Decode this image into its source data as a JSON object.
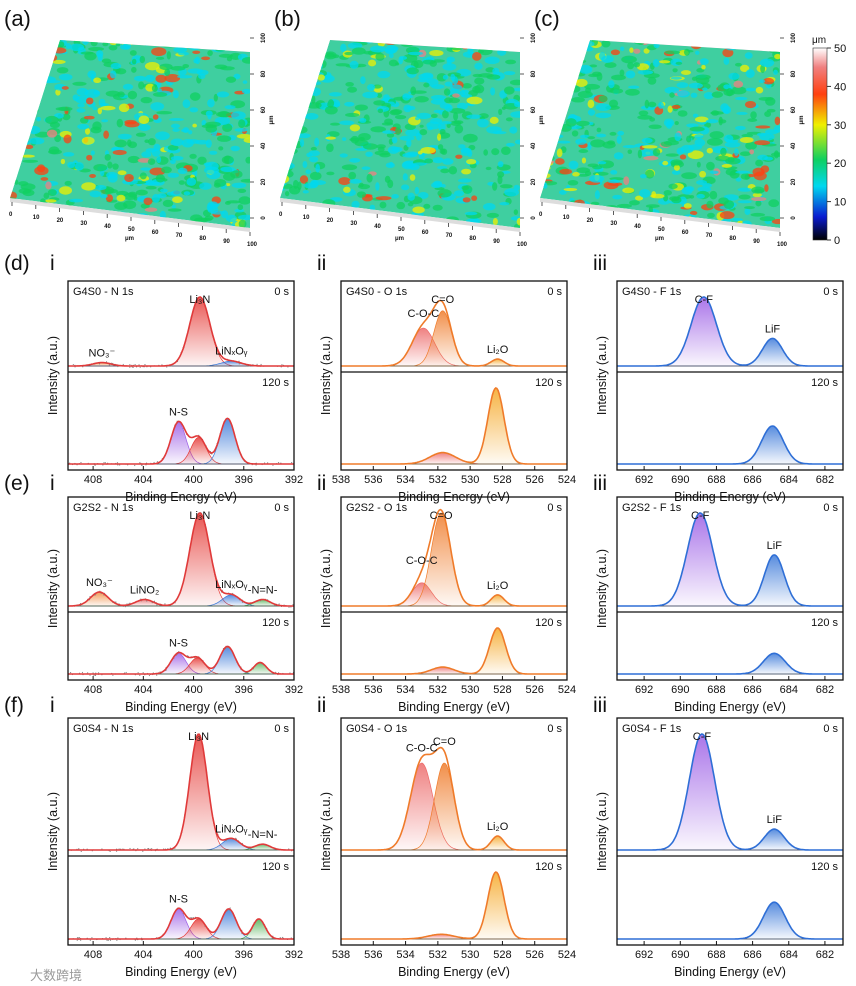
{
  "surface_panels": [
    {
      "label": "(a)",
      "palette_bias": 0.35
    },
    {
      "label": "(b)",
      "palette_bias": 0.15
    },
    {
      "label": "(c)",
      "palette_bias": 0.55
    }
  ],
  "surface_axes": {
    "x_ticks": [
      "0",
      "10",
      "20",
      "30",
      "40",
      "50",
      "60",
      "70",
      "80",
      "90",
      "100"
    ],
    "y_ticks": [
      "0",
      "20",
      "40",
      "60",
      "80",
      "100"
    ],
    "unit": "μm"
  },
  "colorbar": {
    "unit": "μm",
    "ticks": [
      "0",
      "10",
      "20",
      "30",
      "40",
      "50"
    ],
    "range": [
      0,
      50
    ]
  },
  "watermark": "大数跨境",
  "chart_data": [
    {
      "type": "line",
      "row": "(d)",
      "panel": "i",
      "title": "G4S0 - N 1s",
      "xlabel": "Binding Energy (eV)",
      "ylabel": "Intensity (a.u.)",
      "xlim": [
        410,
        392
      ],
      "xticks": [
        "408",
        "404",
        "400",
        "396",
        "392"
      ],
      "tickvals": [
        408,
        404,
        400,
        396,
        392
      ],
      "envelope": "#e03a3a",
      "noise": true,
      "top": {
        "time": "0 s",
        "peaks": [
          {
            "c": 407.3,
            "h": 0.05,
            "s": 0.7,
            "color": "#f08a3c",
            "label": "NO₃⁻"
          },
          {
            "c": 399.5,
            "h": 1,
            "s": 0.8,
            "color": "#e53935",
            "label": "Li₃N"
          },
          {
            "c": 397,
            "h": 0.07,
            "s": 0.8,
            "color": "#3a78d8",
            "label": "LiNₓOᵧ"
          }
        ]
      },
      "bottom": {
        "time": "120 s",
        "peaks": [
          {
            "c": 401.2,
            "h": 0.55,
            "s": 0.6,
            "color": "#9b5de5",
            "label": "N-S"
          },
          {
            "c": 399.6,
            "h": 0.35,
            "s": 0.6,
            "color": "#e53935"
          },
          {
            "c": 397.3,
            "h": 0.6,
            "s": 0.6,
            "color": "#3a78d8"
          }
        ]
      }
    },
    {
      "type": "line",
      "row": "(d)",
      "panel": "ii",
      "title": "G4S0 - O 1s",
      "xlabel": "Binding Energy (eV)",
      "ylabel": "Intensity (a.u.)",
      "xlim": [
        538,
        524
      ],
      "xticks": [
        "538",
        "536",
        "534",
        "532",
        "530",
        "528",
        "526",
        "524"
      ],
      "tickvals": [
        538,
        536,
        534,
        532,
        530,
        528,
        526,
        524
      ],
      "envelope": "#ef7b2a",
      "noise": false,
      "top": {
        "time": "0 s",
        "peaks": [
          {
            "c": 532.9,
            "h": 0.55,
            "s": 0.7,
            "color": "#ec6a6a",
            "label": "C-O-C"
          },
          {
            "c": 531.7,
            "h": 0.8,
            "s": 0.55,
            "color": "#ef7b2a",
            "label": "C=O"
          },
          {
            "c": 528.3,
            "h": 0.1,
            "s": 0.4,
            "color": "#f5a623",
            "label": "Li₂O"
          }
        ]
      },
      "bottom": {
        "time": "120 s",
        "peaks": [
          {
            "c": 531.7,
            "h": 0.15,
            "s": 0.8,
            "color": "#ec6a6a"
          },
          {
            "c": 528.4,
            "h": 1,
            "s": 0.5,
            "color": "#f5a623"
          }
        ]
      }
    },
    {
      "type": "line",
      "row": "(d)",
      "panel": "iii",
      "title": "G4S0 - F 1s",
      "xlabel": "Binding Energy (eV)",
      "ylabel": "Intensity (a.u.)",
      "xlim": [
        693.5,
        681
      ],
      "xticks": [
        "692",
        "690",
        "688",
        "686",
        "684",
        "682"
      ],
      "tickvals": [
        692,
        690,
        688,
        686,
        684,
        682
      ],
      "envelope": "#2f6fd6",
      "noise": false,
      "top": {
        "time": "0 s",
        "peaks": [
          {
            "c": 688.7,
            "h": 1,
            "s": 0.7,
            "color": "#9b5de5",
            "label": "C-F"
          },
          {
            "c": 684.9,
            "h": 0.4,
            "s": 0.55,
            "color": "#3a78d8",
            "label": "LiF"
          }
        ]
      },
      "bottom": {
        "time": "120 s",
        "peaks": [
          {
            "c": 684.9,
            "h": 0.5,
            "s": 0.6,
            "color": "#3a78d8"
          }
        ]
      }
    },
    {
      "type": "line",
      "row": "(e)",
      "panel": "i",
      "title": "G2S2 - N 1s",
      "xlabel": "Binding Energy (eV)",
      "ylabel": "Intensity (a.u.)",
      "xlim": [
        410,
        392
      ],
      "xticks": [
        "408",
        "404",
        "400",
        "396",
        "392"
      ],
      "tickvals": [
        408,
        404,
        400,
        396,
        392
      ],
      "envelope": "#e03a3a",
      "noise": true,
      "top": {
        "time": "0 s",
        "peaks": [
          {
            "c": 407.5,
            "h": 0.15,
            "s": 0.7,
            "color": "#f08a3c",
            "label": "NO₃⁻"
          },
          {
            "c": 403.9,
            "h": 0.07,
            "s": 0.7,
            "color": "#e57373",
            "label": "LiNO₂"
          },
          {
            "c": 399.5,
            "h": 1,
            "s": 0.8,
            "color": "#e53935",
            "label": "Li₃N"
          },
          {
            "c": 397,
            "h": 0.12,
            "s": 0.7,
            "color": "#3a78d8",
            "label": "LiNₓOᵧ"
          },
          {
            "c": 394.5,
            "h": 0.07,
            "s": 0.6,
            "color": "#4caf50",
            "label": "-N=N-"
          }
        ]
      },
      "bottom": {
        "time": "120 s",
        "peaks": [
          {
            "c": 401.2,
            "h": 0.45,
            "s": 0.6,
            "color": "#9b5de5",
            "label": "N-S"
          },
          {
            "c": 399.7,
            "h": 0.35,
            "s": 0.6,
            "color": "#e53935"
          },
          {
            "c": 397.3,
            "h": 0.6,
            "s": 0.6,
            "color": "#3a78d8"
          },
          {
            "c": 394.7,
            "h": 0.25,
            "s": 0.5,
            "color": "#4caf50"
          }
        ]
      }
    },
    {
      "type": "line",
      "row": "(e)",
      "panel": "ii",
      "title": "G2S2 - O 1s",
      "xlabel": "Binding Energy (eV)",
      "ylabel": "Intensity (a.u.)",
      "xlim": [
        538,
        524
      ],
      "xticks": [
        "538",
        "536",
        "534",
        "532",
        "530",
        "528",
        "526",
        "524"
      ],
      "tickvals": [
        538,
        536,
        534,
        532,
        530,
        528,
        526,
        524
      ],
      "envelope": "#ef7b2a",
      "noise": false,
      "top": {
        "time": "0 s",
        "peaks": [
          {
            "c": 533,
            "h": 0.25,
            "s": 0.6,
            "color": "#ec6a6a",
            "label": "C-O-C"
          },
          {
            "c": 531.8,
            "h": 1,
            "s": 0.6,
            "color": "#ef7b2a",
            "label": "C=O"
          },
          {
            "c": 528.3,
            "h": 0.12,
            "s": 0.4,
            "color": "#f5a623",
            "label": "Li₂O"
          }
        ]
      },
      "bottom": {
        "time": "120 s",
        "peaks": [
          {
            "c": 531.7,
            "h": 0.15,
            "s": 0.7,
            "color": "#ec6a6a"
          },
          {
            "c": 528.3,
            "h": 1,
            "s": 0.5,
            "color": "#f5a623"
          }
        ]
      }
    },
    {
      "type": "line",
      "row": "(e)",
      "panel": "iii",
      "title": "G2S2 - F 1s",
      "xlabel": "Binding Energy (eV)",
      "ylabel": "Intensity (a.u.)",
      "xlim": [
        693.5,
        681
      ],
      "xticks": [
        "692",
        "690",
        "688",
        "686",
        "684",
        "682"
      ],
      "tickvals": [
        692,
        690,
        688,
        686,
        684,
        682
      ],
      "envelope": "#2f6fd6",
      "noise": false,
      "top": {
        "time": "0 s",
        "peaks": [
          {
            "c": 688.9,
            "h": 1,
            "s": 0.7,
            "color": "#9b5de5",
            "label": "C-F"
          },
          {
            "c": 684.8,
            "h": 0.55,
            "s": 0.55,
            "color": "#3a78d8",
            "label": "LiF"
          }
        ]
      },
      "bottom": {
        "time": "120 s",
        "peaks": [
          {
            "c": 684.8,
            "h": 0.45,
            "s": 0.6,
            "color": "#3a78d8"
          }
        ]
      }
    },
    {
      "type": "line",
      "row": "(f)",
      "panel": "i",
      "title": "G0S4 - N 1s",
      "xlabel": "Binding Energy (eV)",
      "ylabel": "Intensity (a.u.)",
      "xlim": [
        410,
        392
      ],
      "xticks": [
        "408",
        "404",
        "400",
        "396",
        "392"
      ],
      "tickvals": [
        408,
        404,
        400,
        396,
        392
      ],
      "envelope": "#e03a3a",
      "noise": true,
      "top": {
        "time": "0 s",
        "peaks": [
          {
            "c": 399.6,
            "h": 1,
            "s": 0.7,
            "color": "#e53935",
            "label": "Li₃N"
          },
          {
            "c": 397,
            "h": 0.1,
            "s": 0.7,
            "color": "#3a78d8",
            "label": "LiNₓOᵧ"
          },
          {
            "c": 394.5,
            "h": 0.05,
            "s": 0.6,
            "color": "#4caf50",
            "label": "-N=N-"
          }
        ]
      },
      "bottom": {
        "time": "120 s",
        "peaks": [
          {
            "c": 401.2,
            "h": 0.45,
            "s": 0.6,
            "color": "#9b5de5",
            "label": "N-S"
          },
          {
            "c": 399.6,
            "h": 0.3,
            "s": 0.6,
            "color": "#e53935"
          },
          {
            "c": 397.2,
            "h": 0.45,
            "s": 0.6,
            "color": "#3a78d8"
          },
          {
            "c": 394.8,
            "h": 0.3,
            "s": 0.5,
            "color": "#4caf50"
          }
        ]
      }
    },
    {
      "type": "line",
      "row": "(f)",
      "panel": "ii",
      "title": "G0S4 - O 1s",
      "xlabel": "Binding Energy (eV)",
      "ylabel": "Intensity (a.u.)",
      "xlim": [
        538,
        524
      ],
      "xticks": [
        "538",
        "536",
        "534",
        "532",
        "530",
        "528",
        "526",
        "524"
      ],
      "tickvals": [
        538,
        536,
        534,
        532,
        530,
        528,
        526,
        524
      ],
      "envelope": "#ef7b2a",
      "noise": false,
      "top": {
        "time": "0 s",
        "peaks": [
          {
            "c": 533,
            "h": 0.75,
            "s": 0.7,
            "color": "#ec6a6a",
            "label": "C-O-C"
          },
          {
            "c": 531.6,
            "h": 0.75,
            "s": 0.6,
            "color": "#ef7b2a",
            "label": "C=O"
          },
          {
            "c": 528.3,
            "h": 0.12,
            "s": 0.4,
            "color": "#f5a623",
            "label": "Li₂O"
          }
        ]
      },
      "bottom": {
        "time": "120 s",
        "peaks": [
          {
            "c": 531.8,
            "h": 0.07,
            "s": 0.8,
            "color": "#ec6a6a"
          },
          {
            "c": 528.4,
            "h": 1,
            "s": 0.5,
            "color": "#f5a623"
          }
        ]
      }
    },
    {
      "type": "line",
      "row": "(f)",
      "panel": "iii",
      "title": "G0S4 - F 1s",
      "xlabel": "Binding Energy (eV)",
      "ylabel": "Intensity (a.u.)",
      "xlim": [
        693.5,
        681
      ],
      "xticks": [
        "692",
        "690",
        "688",
        "686",
        "684",
        "682"
      ],
      "tickvals": [
        692,
        690,
        688,
        686,
        684,
        682
      ],
      "envelope": "#2f6fd6",
      "noise": false,
      "top": {
        "time": "0 s",
        "peaks": [
          {
            "c": 688.8,
            "h": 1,
            "s": 0.7,
            "color": "#9b5de5",
            "label": "C-F"
          },
          {
            "c": 684.8,
            "h": 0.18,
            "s": 0.55,
            "color": "#3a78d8",
            "label": "LiF"
          }
        ]
      },
      "bottom": {
        "time": "120 s",
        "peaks": [
          {
            "c": 684.8,
            "h": 0.55,
            "s": 0.6,
            "color": "#3a78d8"
          }
        ]
      }
    }
  ]
}
